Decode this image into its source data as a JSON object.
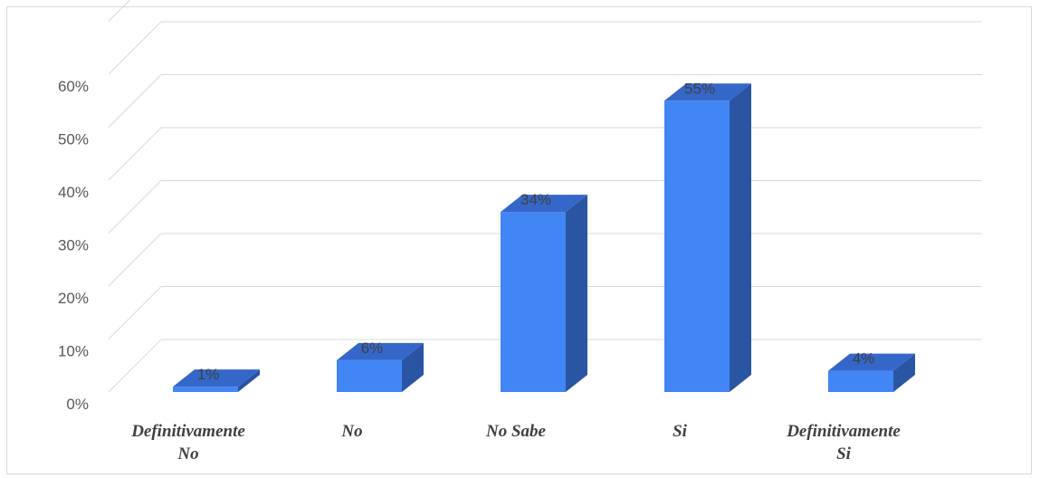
{
  "chart_data": {
    "type": "bar",
    "style": "3d-column",
    "categories": [
      "Definitivamente No",
      "No",
      "No Sabe",
      "Si",
      "Definitivamente Si"
    ],
    "category_lines": [
      [
        "Definitivamente",
        "No"
      ],
      [
        "No"
      ],
      [
        "No Sabe"
      ],
      [
        "Si"
      ],
      [
        "Definitivamente",
        "Si"
      ]
    ],
    "values": [
      1,
      6,
      34,
      55,
      4
    ],
    "data_labels": [
      "1%",
      "6%",
      "34%",
      "55%",
      "4%"
    ],
    "y_ticks": [
      "0%",
      "10%",
      "20%",
      "30%",
      "40%",
      "50%",
      "60%"
    ],
    "ylim": [
      0,
      65
    ],
    "grid": true,
    "legend": "none",
    "colors": {
      "bar_front": "#4285f4",
      "bar_top": "#3567c9",
      "bar_side": "#2a55a3",
      "grid": "#d9d9d9",
      "axis_text": "#595959",
      "label_text": "#404040"
    }
  }
}
